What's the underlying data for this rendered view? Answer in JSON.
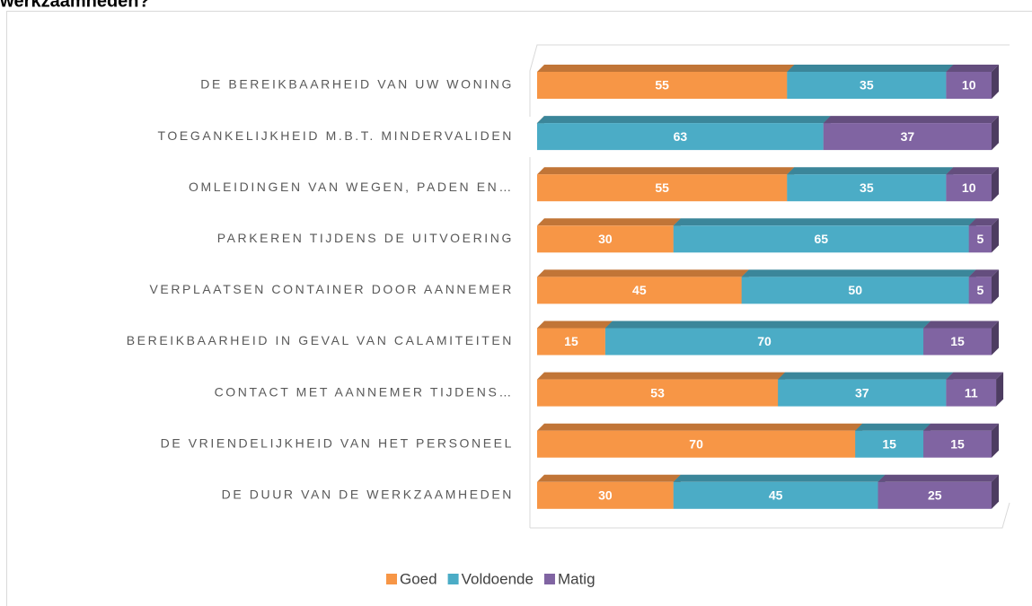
{
  "chart_data": {
    "type": "stacked_bar_3d",
    "title": "werkzaamheden?",
    "categories": [
      "DE BEREIKBAARHEID VAN UW WONING",
      "TOEGANKELIJKHEID M.B.T. MINDERVALIDEN",
      "OMLEIDINGEN VAN WEGEN, PADEN EN…",
      "PARKEREN TIJDENS DE UITVOERING",
      "VERPLAATSEN CONTAINER DOOR AANNEMER",
      "BEREIKBAARHEID IN GEVAL VAN CALAMITEITEN",
      "CONTACT MET AANNEMER TIJDENS…",
      "DE VRIENDELIJKHEID VAN HET PERSONEEL",
      "DE DUUR VAN DE WERKZAAMHEDEN"
    ],
    "series": [
      {
        "name": "Goed",
        "color": "#f79646",
        "values": [
          55,
          0,
          55,
          30,
          45,
          15,
          53,
          70,
          30
        ]
      },
      {
        "name": "Voldoende",
        "color": "#4bacc6",
        "values": [
          35,
          63,
          35,
          65,
          50,
          70,
          37,
          15,
          45
        ]
      },
      {
        "name": "Matig",
        "color": "#8064a2",
        "values": [
          10,
          37,
          10,
          5,
          5,
          15,
          11,
          15,
          25
        ]
      }
    ],
    "xlim": [
      0,
      100
    ],
    "legend": "bottom"
  }
}
